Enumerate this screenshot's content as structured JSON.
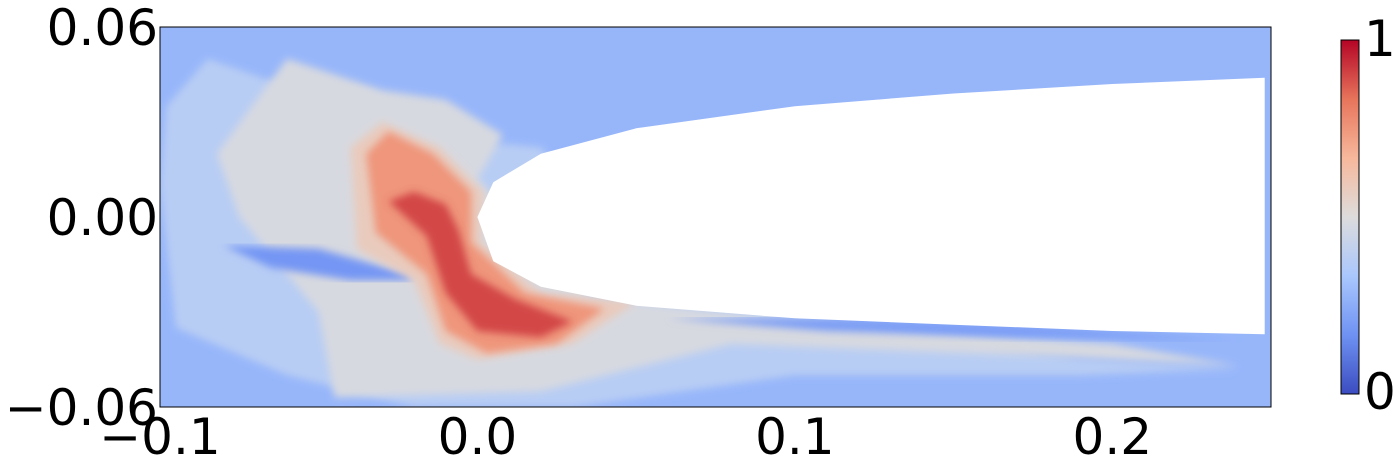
{
  "chart_data": {
    "type": "heatmap",
    "title": "",
    "xlabel": "",
    "ylabel": "",
    "xlim": [
      -0.1,
      0.25
    ],
    "ylim": [
      -0.06,
      0.06
    ],
    "x_ticks": [
      {
        "value": -0.1,
        "label": "−0.1"
      },
      {
        "value": 0.0,
        "label": "0.0"
      },
      {
        "value": 0.1,
        "label": "0.1"
      },
      {
        "value": 0.2,
        "label": "0.2"
      }
    ],
    "y_ticks": [
      {
        "value": 0.06,
        "label": "0.06"
      },
      {
        "value": 0.0,
        "label": "0.00"
      },
      {
        "value": -0.06,
        "label": "−0.06"
      }
    ],
    "colorbar": {
      "min": 0,
      "max": 1,
      "min_label": "0",
      "max_label": "1",
      "colormap": "coolwarm",
      "colors": [
        "#3b4cc0",
        "#6f92f3",
        "#aac7fd",
        "#dddcdc",
        "#f7b89c",
        "#e7745b",
        "#b40426"
      ]
    },
    "background_value": 0.28,
    "body": {
      "shape": "parabolic leading edge",
      "leading_edge_x": 0.0,
      "upper_surface": [
        [
          0.0,
          0.0
        ],
        [
          0.005,
          0.011
        ],
        [
          0.02,
          0.02
        ],
        [
          0.05,
          0.028
        ],
        [
          0.1,
          0.035
        ],
        [
          0.15,
          0.039
        ],
        [
          0.2,
          0.042
        ],
        [
          0.248,
          0.044
        ]
      ],
      "lower_surface": [
        [
          0.0,
          0.0
        ],
        [
          0.005,
          -0.014
        ],
        [
          0.02,
          -0.022
        ],
        [
          0.05,
          -0.028
        ],
        [
          0.1,
          -0.032
        ],
        [
          0.15,
          -0.034
        ],
        [
          0.2,
          -0.036
        ],
        [
          0.248,
          -0.037
        ]
      ]
    },
    "regions": [
      {
        "value": 0.38,
        "points": [
          [
            -0.085,
            0.05
          ],
          [
            -0.062,
            0.042
          ],
          [
            -0.035,
            0.04
          ],
          [
            -0.012,
            0.025
          ],
          [
            0.02,
            0.022
          ],
          [
            0.045,
            -0.01
          ],
          [
            0.12,
            -0.035
          ],
          [
            0.19,
            -0.045
          ],
          [
            0.24,
            -0.048
          ],
          [
            0.19,
            -0.05
          ],
          [
            0.1,
            -0.05
          ],
          [
            0.03,
            -0.06
          ],
          [
            -0.02,
            -0.06
          ],
          [
            -0.06,
            -0.05
          ],
          [
            -0.095,
            -0.035
          ],
          [
            -0.1,
            0.01
          ],
          [
            -0.098,
            0.035
          ]
        ]
      },
      {
        "value": 0.48,
        "points": [
          [
            -0.06,
            0.05
          ],
          [
            -0.03,
            0.04
          ],
          [
            -0.01,
            0.037
          ],
          [
            0.008,
            0.026
          ],
          [
            0.0,
            0.012
          ],
          [
            0.035,
            -0.025
          ],
          [
            0.1,
            -0.033
          ],
          [
            0.2,
            -0.04
          ],
          [
            0.24,
            -0.047
          ],
          [
            0.18,
            -0.044
          ],
          [
            0.08,
            -0.04
          ],
          [
            0.02,
            -0.055
          ],
          [
            -0.045,
            -0.057
          ],
          [
            -0.05,
            -0.03
          ],
          [
            -0.075,
            0.0
          ],
          [
            -0.082,
            0.02
          ]
        ]
      },
      {
        "value": 0.18,
        "points": [
          [
            -0.08,
            -0.009
          ],
          [
            -0.05,
            -0.01
          ],
          [
            -0.022,
            -0.018
          ],
          [
            -0.02,
            -0.02
          ],
          [
            -0.04,
            -0.02
          ],
          [
            -0.065,
            -0.016
          ]
        ]
      },
      {
        "value": 0.2,
        "points": [
          [
            0.06,
            -0.032
          ],
          [
            0.11,
            -0.032
          ],
          [
            0.17,
            -0.034
          ],
          [
            0.24,
            -0.039
          ],
          [
            0.17,
            -0.038
          ],
          [
            0.11,
            -0.036
          ]
        ]
      },
      {
        "value": 0.58,
        "points": [
          [
            -0.04,
            0.022
          ],
          [
            -0.03,
            0.03
          ],
          [
            -0.012,
            0.022
          ],
          [
            0.002,
            0.008
          ],
          [
            0.001,
            -0.008
          ],
          [
            0.02,
            -0.024
          ],
          [
            0.05,
            -0.027
          ],
          [
            0.03,
            -0.04
          ],
          [
            0.0,
            -0.045
          ],
          [
            -0.012,
            -0.04
          ],
          [
            -0.02,
            -0.02
          ],
          [
            -0.038,
            -0.01
          ]
        ]
      },
      {
        "value": 0.75,
        "points": [
          [
            -0.035,
            0.02
          ],
          [
            -0.028,
            0.027
          ],
          [
            -0.014,
            0.02
          ],
          [
            -0.002,
            0.008
          ],
          [
            -0.002,
            -0.008
          ],
          [
            0.015,
            -0.024
          ],
          [
            0.04,
            -0.029
          ],
          [
            0.025,
            -0.04
          ],
          [
            0.003,
            -0.043
          ],
          [
            -0.01,
            -0.036
          ],
          [
            -0.016,
            -0.018
          ],
          [
            -0.032,
            -0.005
          ]
        ]
      },
      {
        "value": 0.9,
        "points": [
          [
            -0.028,
            0.005
          ],
          [
            -0.02,
            0.008
          ],
          [
            -0.01,
            0.004
          ],
          [
            -0.006,
            -0.004
          ],
          [
            -0.002,
            -0.018
          ],
          [
            0.012,
            -0.026
          ],
          [
            0.03,
            -0.033
          ],
          [
            0.02,
            -0.038
          ],
          [
            0.0,
            -0.036
          ],
          [
            -0.01,
            -0.024
          ],
          [
            -0.016,
            -0.006
          ]
        ]
      }
    ]
  }
}
